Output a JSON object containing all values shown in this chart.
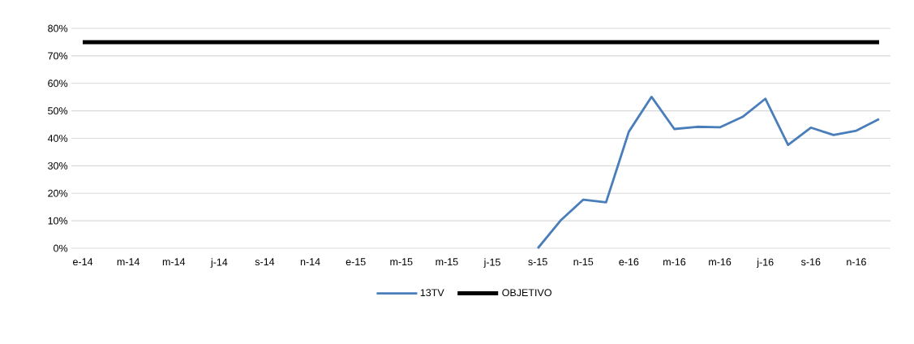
{
  "chart_data": {
    "type": "line",
    "categories": [
      "e-14",
      null,
      "m-14",
      null,
      "m-14",
      null,
      "j-14",
      null,
      "s-14",
      null,
      "n-14",
      null,
      "e-15",
      null,
      "m-15",
      null,
      "m-15",
      null,
      "j-15",
      null,
      "s-15",
      null,
      "n-15",
      null,
      "e-16",
      null,
      "m-16",
      null,
      "m-16",
      null,
      "j-16",
      null,
      "s-16",
      null,
      "n-16",
      null
    ],
    "series": [
      {
        "name": "13TV",
        "color": "#4a7ebb",
        "values": [
          null,
          null,
          null,
          null,
          null,
          null,
          null,
          null,
          null,
          null,
          null,
          null,
          null,
          null,
          null,
          null,
          null,
          null,
          null,
          null,
          0,
          10.1,
          17.7,
          16.7,
          42.4,
          55.1,
          43.4,
          44.2,
          44.0,
          47.8,
          54.4,
          37.6,
          43.9,
          41.2,
          42.8,
          47.0
        ]
      },
      {
        "name": "OBJETIVO",
        "color": "#000000",
        "values": [
          75,
          75,
          75,
          75,
          75,
          75,
          75,
          75,
          75,
          75,
          75,
          75,
          75,
          75,
          75,
          75,
          75,
          75,
          75,
          75,
          75,
          75,
          75,
          75,
          75,
          75,
          75,
          75,
          75,
          75,
          75,
          75,
          75,
          75,
          75,
          75
        ]
      }
    ],
    "ylim": [
      0,
      80
    ],
    "yticks": [
      {
        "value": 0,
        "label": "0%"
      },
      {
        "value": 10,
        "label": "10%"
      },
      {
        "value": 20,
        "label": "20%"
      },
      {
        "value": 30,
        "label": "30%"
      },
      {
        "value": 40,
        "label": "40%"
      },
      {
        "value": 50,
        "label": "50%"
      },
      {
        "value": 60,
        "label": "60%"
      },
      {
        "value": 70,
        "label": "70%"
      },
      {
        "value": 80,
        "label": "80%"
      }
    ],
    "grid": "y",
    "legend": "bottom"
  }
}
